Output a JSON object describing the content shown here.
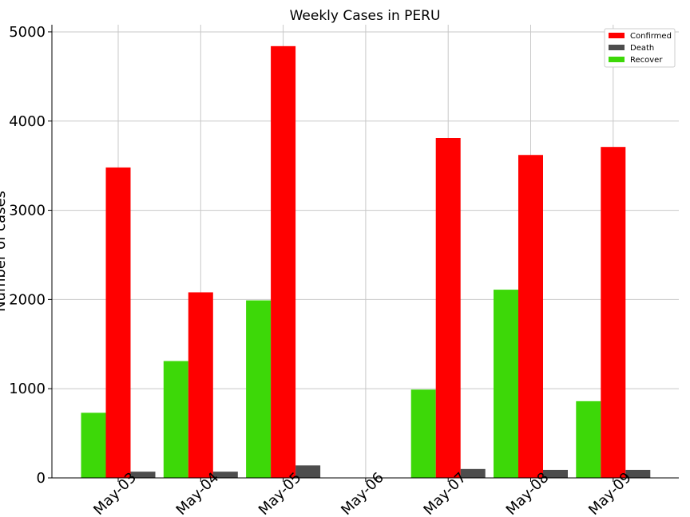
{
  "chart_data": {
    "type": "bar",
    "title": "Weekly Cases in PERU",
    "xlabel": "",
    "ylabel": "Number of cases",
    "categories": [
      "May-03",
      "May-04",
      "May-05",
      "May-06",
      "May-07",
      "May-08",
      "May-09"
    ],
    "series": [
      {
        "name": "Recover",
        "color": "#3dd808",
        "values": [
          730,
          1310,
          1990,
          0,
          990,
          2110,
          860
        ]
      },
      {
        "name": "Confirmed",
        "color": "#ff0000",
        "values": [
          3480,
          2080,
          4840,
          0,
          3810,
          3620,
          3710
        ]
      },
      {
        "name": "Death",
        "color": "#4d4d4d",
        "values": [
          70,
          70,
          140,
          0,
          100,
          90,
          90
        ]
      }
    ],
    "legend_order": [
      "Confirmed",
      "Death",
      "Recover"
    ],
    "yticks": [
      0,
      1000,
      2000,
      3000,
      4000,
      5000
    ],
    "ylim": [
      0,
      5080
    ],
    "grid": true,
    "legend_position": "top-right"
  }
}
